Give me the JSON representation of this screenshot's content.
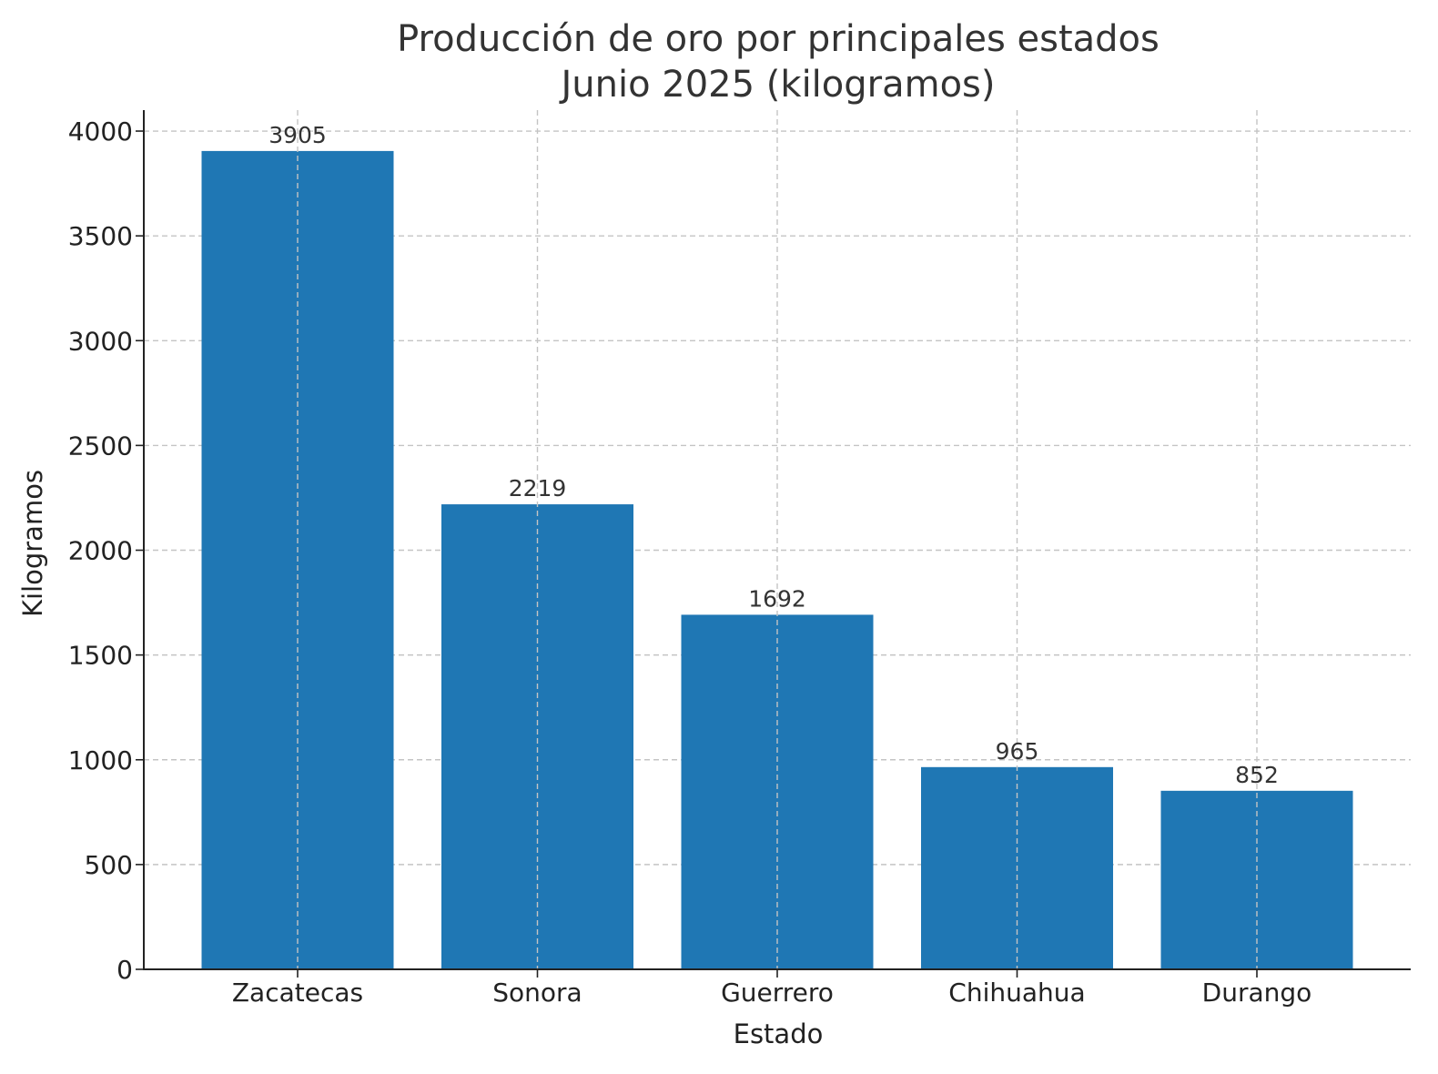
{
  "chart_data": {
    "type": "bar",
    "title": "Producción de oro por principales estados",
    "subtitle": "Junio 2025 (kilogramos)",
    "xlabel": "Estado",
    "ylabel": "Kilogramos",
    "categories": [
      "Zacatecas",
      "Sonora",
      "Guerrero",
      "Chihuahua",
      "Durango"
    ],
    "values": [
      3905,
      2219,
      1692,
      965,
      852
    ],
    "data_labels": [
      "3905",
      "2219",
      "1692",
      "965",
      "852"
    ],
    "ylim": [
      0,
      4100
    ],
    "yticks": [
      0,
      500,
      1000,
      1500,
      2000,
      2500,
      3000,
      3500,
      4000
    ],
    "grid": true,
    "bar_color": "#1f77b4"
  }
}
